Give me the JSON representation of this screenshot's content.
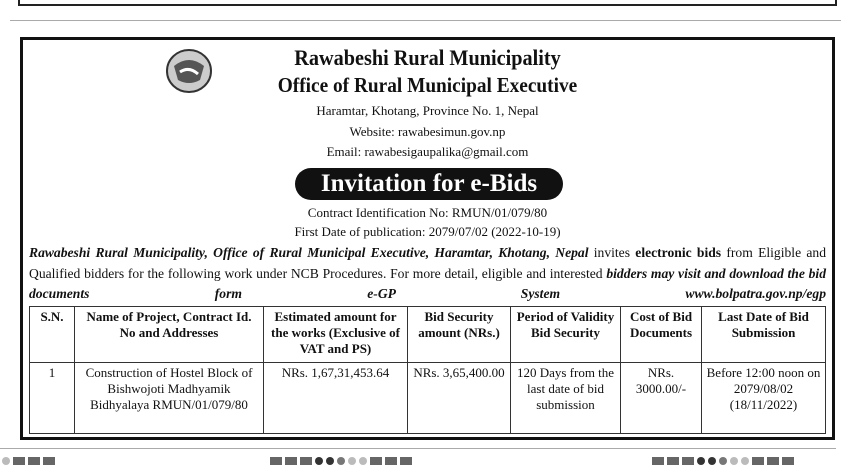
{
  "header": {
    "title": "Rawabeshi Rural Municipality",
    "subtitle": "Office of Rural Municipal Executive",
    "address": "Haramtar, Khotang, Province No. 1, Nepal",
    "website": "Website: rawabesimun.gov.np",
    "email": "Email: rawabesigaupalika@gmail.com",
    "logo": "nepal-emblem-logo"
  },
  "notice": {
    "heading": "Invitation for e-Bids",
    "contract_id": "Contract Identification No: RMUN/01/079/80",
    "publication_date": "First Date of publication: 2079/07/02 (2022-10-19)",
    "para": {
      "p1": "Rawabeshi Rural Municipality, Office of Rural Municipal Executive, Haramtar, Khotang, Nepal",
      "p2": " invites ",
      "p3": "electronic bids",
      "p4": " from Eligible and Qualified bidders for the following work under NCB Procedures.  For more detail, eligible and interested ",
      "p5": "bidders may visit and download the bid documents form e-GP System www.bolpatra.gov.np/egp"
    }
  },
  "table": {
    "headers": [
      "S.N.",
      "Name of Project, Contract Id. No and Addresses",
      "Estimated amount for the works (Exclusive of VAT and PS)",
      "Bid Security amount (NRs.)",
      "Period of Validity Bid Security",
      "Cost of Bid Documents",
      "Last Date of Bid Submission"
    ],
    "rows": [
      [
        "1",
        "Construction of Hostel Block of Bishwojoti Madhyamik Bidhyalaya RMUN/01/079/80",
        "NRs. 1,67,31,453.64",
        "NRs. 3,65,400.00",
        "120 Days from the last date of bid submission",
        "NRs. 3000.00/-",
        "Before 12:00 noon on 2079/08/02 (18/11/2022)"
      ]
    ]
  }
}
